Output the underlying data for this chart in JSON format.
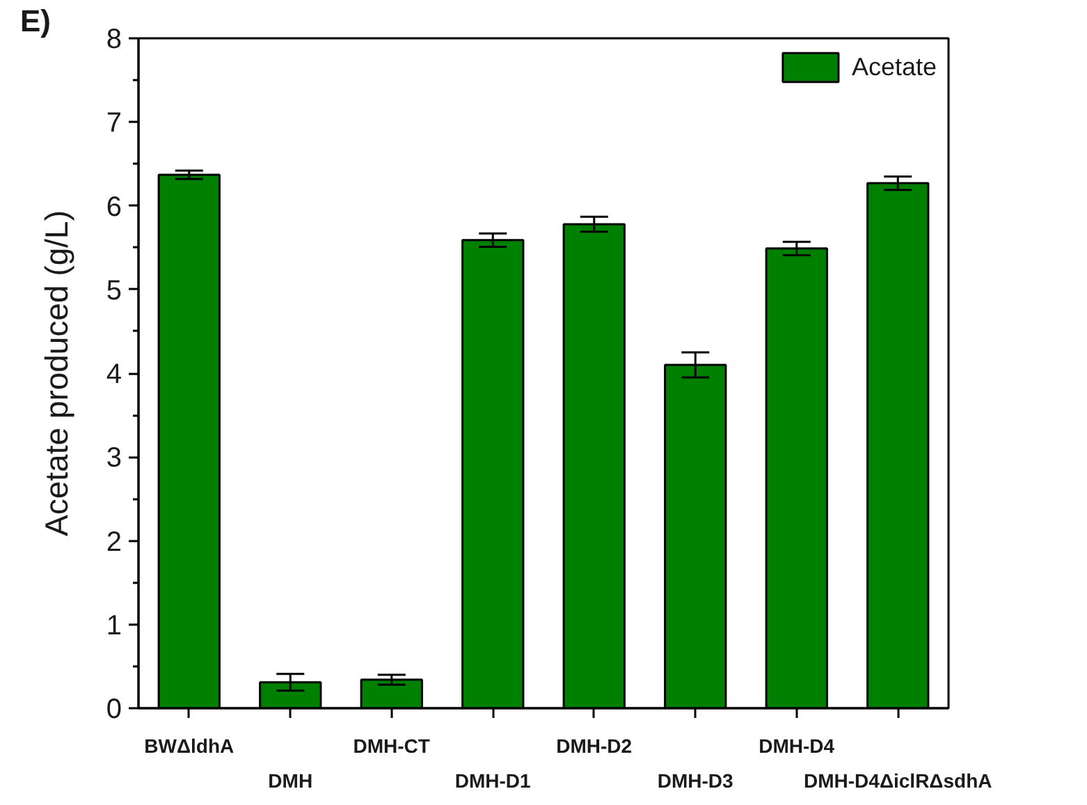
{
  "chart_data": {
    "type": "bar",
    "annotations": [
      "E)"
    ],
    "ylabel": "Acetate produced (g/L)",
    "categories": [
      "BWΔldhA",
      "DMH",
      "DMH-CT",
      "DMH-D1",
      "DMH-D2",
      "DMH-D3",
      "DMH-D4",
      "DMH-D4ΔiclRΔsdhA"
    ],
    "series": [
      {
        "name": "Acetate",
        "color": "#008000",
        "values": [
          6.37,
          0.31,
          0.34,
          5.59,
          5.78,
          4.1,
          5.49,
          6.27
        ],
        "errors": [
          0.05,
          0.1,
          0.06,
          0.08,
          0.09,
          0.15,
          0.08,
          0.08
        ]
      }
    ],
    "ylim": [
      0,
      8
    ],
    "yticks": [
      0,
      {
        "value": 0.5,
        "label": null
      },
      1,
      {
        "value": 1.5,
        "label": null
      },
      2,
      {
        "value": 2.5,
        "label": null
      },
      3,
      {
        "value": 3.5,
        "label": null
      },
      4,
      {
        "value": 4.5,
        "label": null
      },
      5,
      {
        "value": 5.5,
        "label": null
      },
      6,
      {
        "value": 6.5,
        "label": null
      },
      7,
      {
        "value": 7.5,
        "label": null
      },
      8
    ],
    "legend": "top right",
    "grid": false
  }
}
